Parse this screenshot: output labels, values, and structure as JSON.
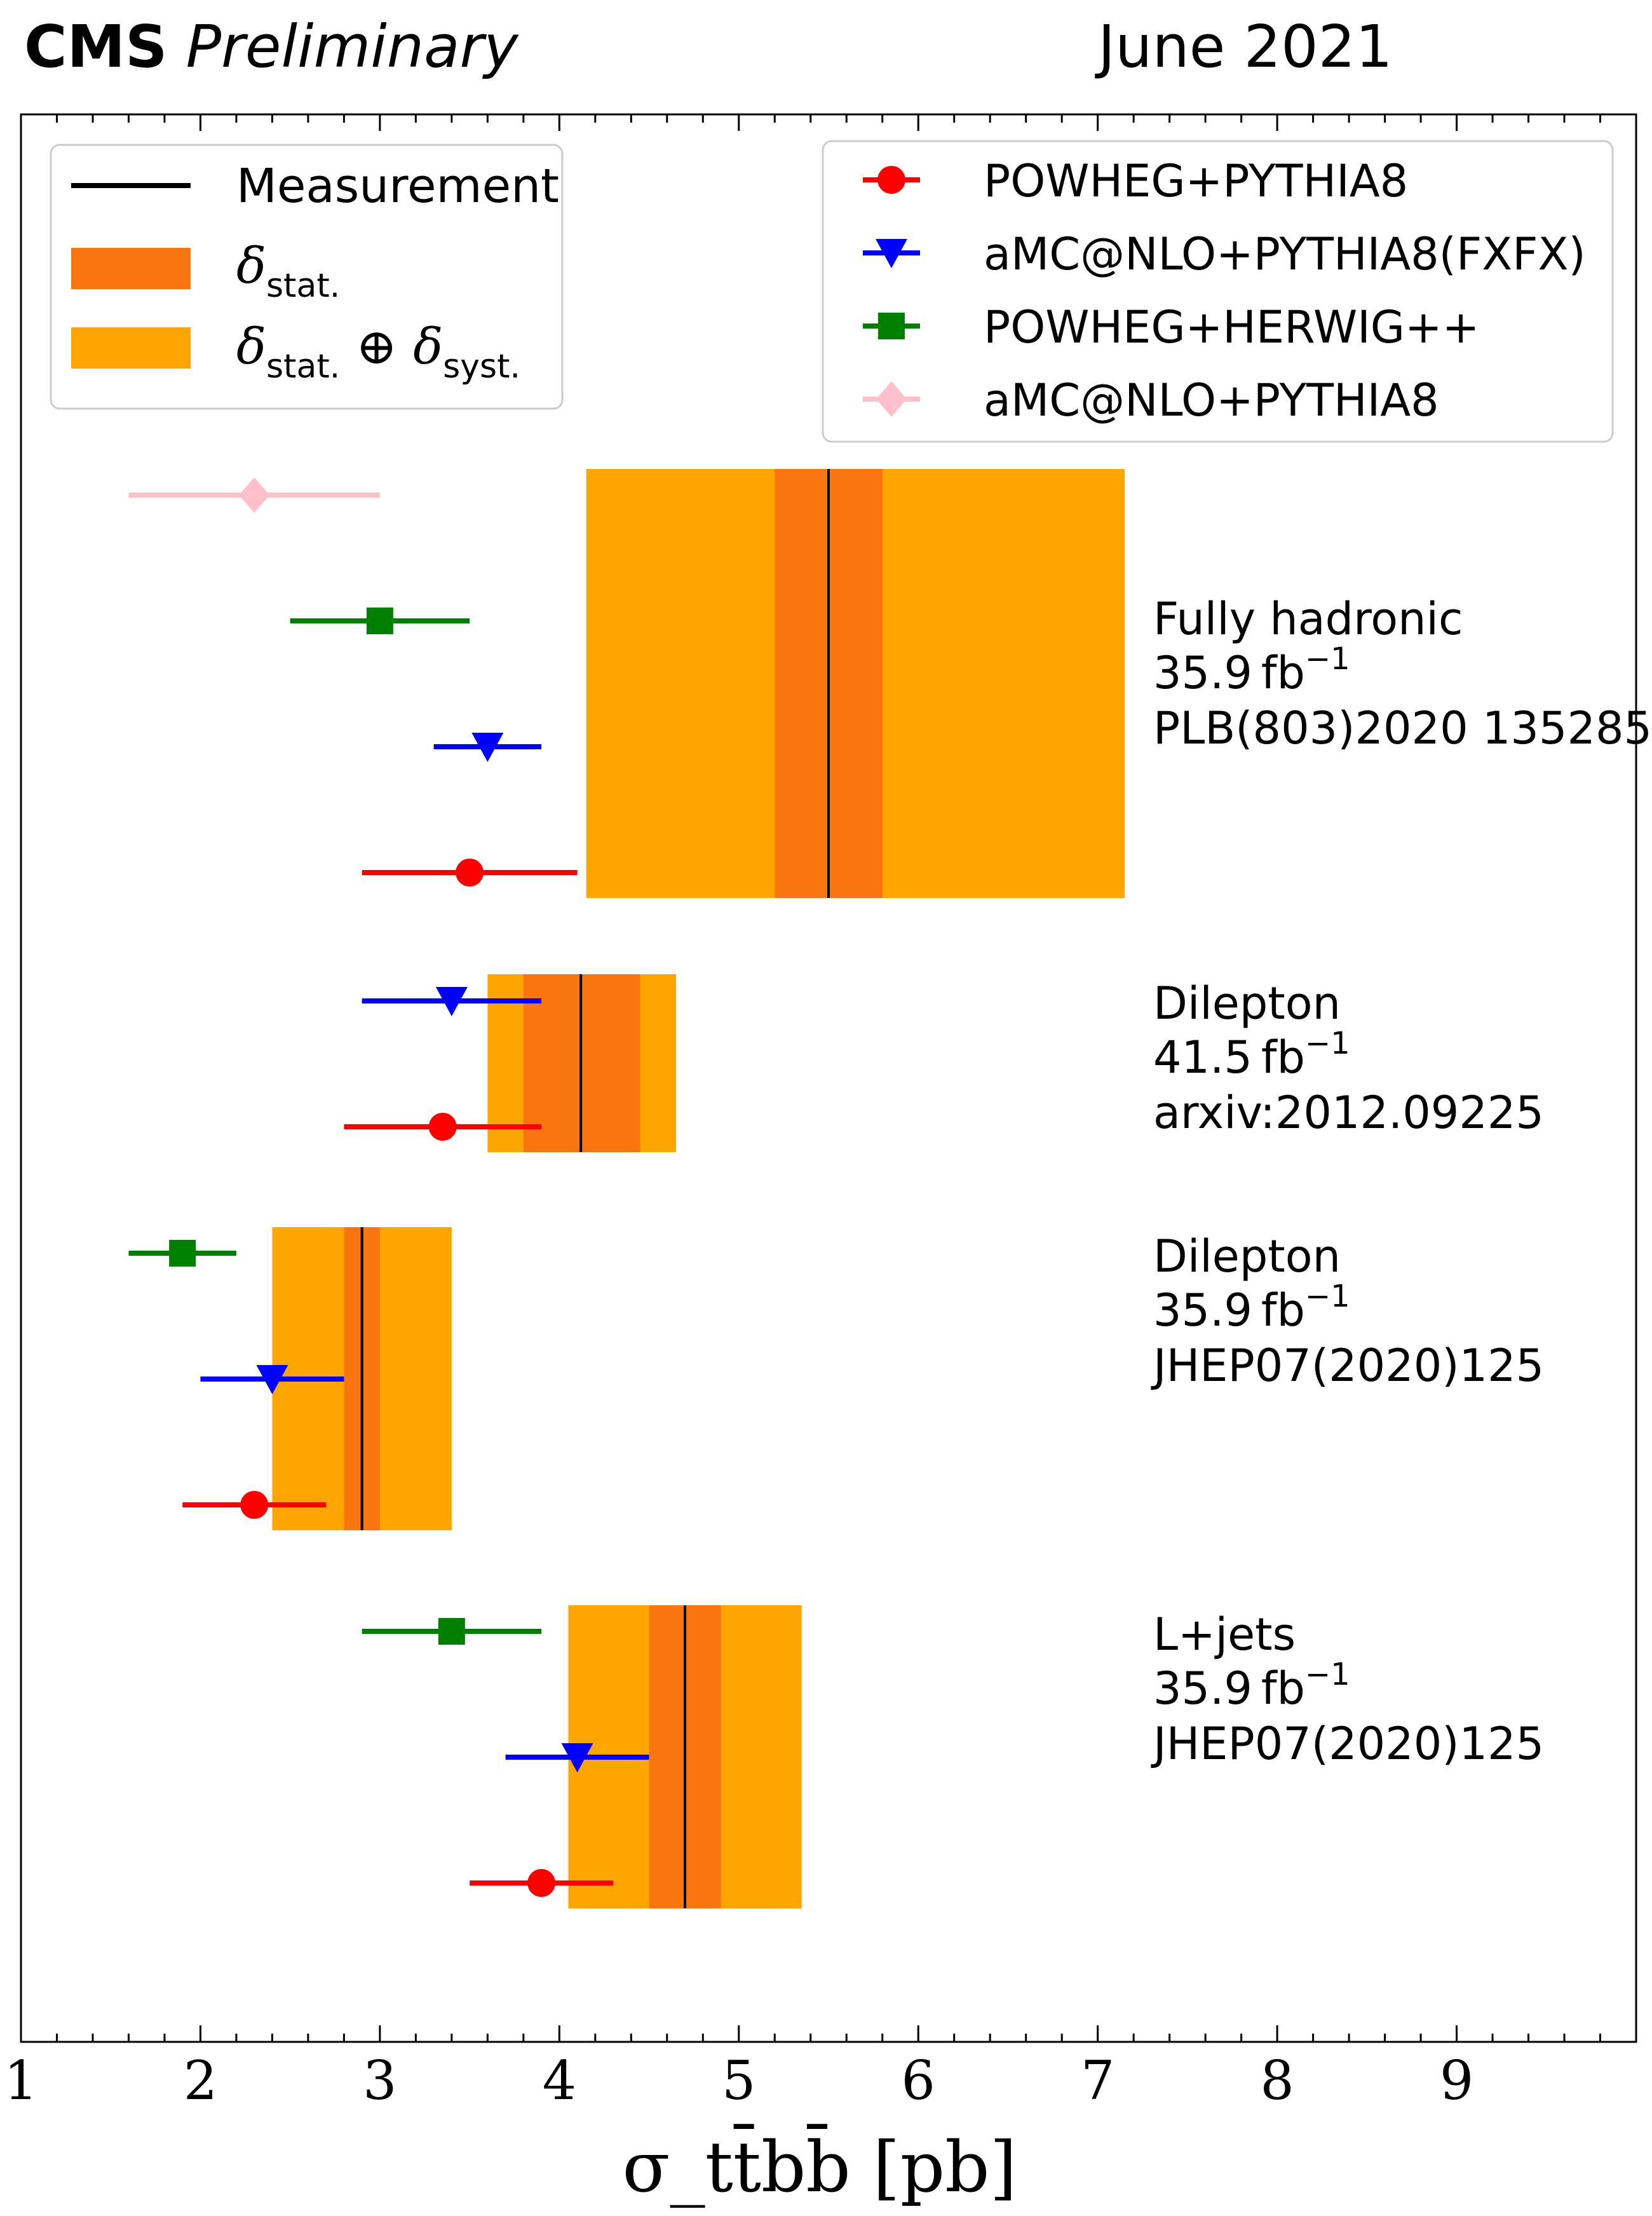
{
  "header": {
    "experiment": "CMS",
    "status": "Preliminary",
    "date": "June 2021"
  },
  "chart_data": {
    "type": "errorbar",
    "xlabel": "σ_tt̄bb̄ [pb]",
    "xlabel_unit": "[pb]",
    "xlim": [
      1,
      10
    ],
    "xticks": [
      1,
      2,
      3,
      4,
      5,
      6,
      7,
      8,
      9
    ],
    "grid": false,
    "legends": {
      "measurement": {
        "position": "top-left",
        "entries": [
          {
            "name": "Measurement",
            "color": "#000000",
            "kind": "line"
          },
          {
            "name": "δ_stat.",
            "label_main": "δ",
            "label_sub": "stat.",
            "color": "#F8750F",
            "kind": "patch"
          },
          {
            "name": "δ_stat. ⊕ δ_syst.",
            "label_main": "δ",
            "label_sub": "stat.",
            "label_op": " ⊕ ",
            "label_main2": "δ",
            "label_sub2": "syst.",
            "color": "#FFA500",
            "kind": "patch"
          }
        ]
      },
      "predictions": {
        "position": "top-right",
        "entries": [
          {
            "name": "POWHEG+PYTHIA8",
            "color": "#FF0000",
            "marker": "circle"
          },
          {
            "name": "aMC@NLO+PYTHIA8(FXFX)",
            "color": "#0000FF",
            "marker": "triangle-down"
          },
          {
            "name": "POWHEG+HERWIG++",
            "color": "#008000",
            "marker": "square"
          },
          {
            "name": "aMC@NLO+PYTHIA8",
            "color": "#FFC0CB",
            "marker": "diamond"
          }
        ]
      }
    },
    "analyses": [
      {
        "channel": "Fully hadronic",
        "lumi_value": "35.9",
        "lumi_unit": "fb",
        "lumi_exp": "−1",
        "reference": "PLB(803)2020 135285",
        "measurement": 5.5,
        "stat": [
          5.2,
          5.8
        ],
        "total": [
          4.15,
          7.15
        ],
        "predictions": [
          {
            "generator": "POWHEG+PYTHIA8",
            "value": 3.5,
            "range": [
              2.9,
              4.1
            ]
          },
          {
            "generator": "aMC@NLO+PYTHIA8(FXFX)",
            "value": 3.6,
            "range": [
              3.3,
              3.9
            ]
          },
          {
            "generator": "POWHEG+HERWIG++",
            "value": 3.0,
            "range": [
              2.5,
              3.5
            ]
          },
          {
            "generator": "aMC@NLO+PYTHIA8",
            "value": 2.3,
            "range": [
              1.6,
              3.0
            ]
          }
        ]
      },
      {
        "channel": "Dilepton",
        "lumi_value": "41.5",
        "lumi_unit": "fb",
        "lumi_exp": "−1",
        "reference": "arxiv:2012.09225",
        "measurement": 4.12,
        "stat": [
          3.8,
          4.45
        ],
        "total": [
          3.6,
          4.65
        ],
        "predictions": [
          {
            "generator": "POWHEG+PYTHIA8",
            "value": 3.35,
            "range": [
              2.8,
              3.9
            ]
          },
          {
            "generator": "aMC@NLO+PYTHIA8(FXFX)",
            "value": 3.4,
            "range": [
              2.9,
              3.9
            ]
          }
        ]
      },
      {
        "channel": "Dilepton",
        "lumi_value": "35.9",
        "lumi_unit": "fb",
        "lumi_exp": "−1",
        "reference": "JHEP07(2020)125",
        "measurement": 2.9,
        "stat": [
          2.8,
          3.0
        ],
        "total": [
          2.4,
          3.4
        ],
        "predictions": [
          {
            "generator": "POWHEG+PYTHIA8",
            "value": 2.3,
            "range": [
              1.9,
              2.7
            ]
          },
          {
            "generator": "aMC@NLO+PYTHIA8(FXFX)",
            "value": 2.4,
            "range": [
              2.0,
              2.8
            ]
          },
          {
            "generator": "POWHEG+HERWIG++",
            "value": 1.9,
            "range": [
              1.6,
              2.2
            ]
          }
        ]
      },
      {
        "channel": "L+jets",
        "lumi_value": "35.9",
        "lumi_unit": "fb",
        "lumi_exp": "−1",
        "reference": "JHEP07(2020)125",
        "measurement": 4.7,
        "stat": [
          4.5,
          4.9
        ],
        "total": [
          4.05,
          5.35
        ],
        "predictions": [
          {
            "generator": "POWHEG+PYTHIA8",
            "value": 3.9,
            "range": [
              3.5,
              4.3
            ]
          },
          {
            "generator": "aMC@NLO+PYTHIA8(FXFX)",
            "value": 4.1,
            "range": [
              3.7,
              4.5
            ]
          },
          {
            "generator": "POWHEG+HERWIG++",
            "value": 3.4,
            "range": [
              2.9,
              3.9
            ]
          }
        ]
      }
    ]
  }
}
